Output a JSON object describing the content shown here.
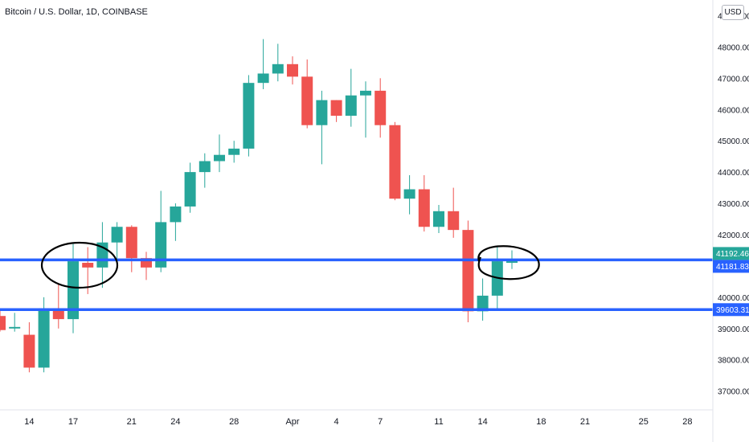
{
  "header": {
    "title": "Bitcoin / U.S. Dollar, 1D, COINBASE",
    "currency": "USD"
  },
  "chart_data": {
    "type": "candlestick",
    "title": "Bitcoin / U.S. Dollar, 1D, COINBASE",
    "ylim": [
      36400,
      49500
    ],
    "y_ticks": [
      37000,
      38000,
      39000,
      40000,
      41000,
      42000,
      43000,
      44000,
      45000,
      46000,
      47000,
      48000,
      49000
    ],
    "y_tick_labels": [
      "37000.00",
      "38000.00",
      "39000.00",
      "40000.00",
      "41000.00",
      "42000.00",
      "43000.00",
      "44000.00",
      "45000.00",
      "46000.00",
      "47000.00",
      "48000.00",
      "49000.00"
    ],
    "x_ticks": [
      {
        "label": "14",
        "index": 2
      },
      {
        "label": "17",
        "index": 5
      },
      {
        "label": "21",
        "index": 9
      },
      {
        "label": "24",
        "index": 12
      },
      {
        "label": "28",
        "index": 16
      },
      {
        "label": "Apr",
        "index": 20
      },
      {
        "label": "4",
        "index": 23
      },
      {
        "label": "7",
        "index": 26
      },
      {
        "label": "11",
        "index": 30
      },
      {
        "label": "14",
        "index": 33
      },
      {
        "label": "18",
        "index": 37
      },
      {
        "label": "21",
        "index": 40
      },
      {
        "label": "25",
        "index": 44
      },
      {
        "label": "28",
        "index": 47
      }
    ],
    "candles": [
      {
        "o": 39400,
        "h": 39600,
        "l": 38900,
        "c": 38950
      },
      {
        "o": 39000,
        "h": 39500,
        "l": 38900,
        "c": 39050
      },
      {
        "o": 38800,
        "h": 39200,
        "l": 37600,
        "c": 37750
      },
      {
        "o": 37750,
        "h": 40000,
        "l": 37600,
        "c": 39650
      },
      {
        "o": 39650,
        "h": 40450,
        "l": 39000,
        "c": 39300
      },
      {
        "o": 39300,
        "h": 41700,
        "l": 38850,
        "c": 41150
      },
      {
        "o": 41100,
        "h": 41600,
        "l": 40100,
        "c": 40950
      },
      {
        "o": 40950,
        "h": 42400,
        "l": 40300,
        "c": 41750
      },
      {
        "o": 41750,
        "h": 42400,
        "l": 41200,
        "c": 42250
      },
      {
        "o": 42250,
        "h": 42300,
        "l": 40800,
        "c": 41250
      },
      {
        "o": 41250,
        "h": 41450,
        "l": 40550,
        "c": 40950
      },
      {
        "o": 40950,
        "h": 43400,
        "l": 40800,
        "c": 42400
      },
      {
        "o": 42400,
        "h": 43000,
        "l": 41800,
        "c": 42900
      },
      {
        "o": 42900,
        "h": 44300,
        "l": 42700,
        "c": 44000
      },
      {
        "o": 44000,
        "h": 44600,
        "l": 43500,
        "c": 44350
      },
      {
        "o": 44350,
        "h": 45200,
        "l": 44000,
        "c": 44550
      },
      {
        "o": 44550,
        "h": 45000,
        "l": 44300,
        "c": 44750
      },
      {
        "o": 44750,
        "h": 47100,
        "l": 44500,
        "c": 46850
      },
      {
        "o": 46850,
        "h": 48250,
        "l": 46650,
        "c": 47150
      },
      {
        "o": 47150,
        "h": 48100,
        "l": 46900,
        "c": 47450
      },
      {
        "o": 47450,
        "h": 47700,
        "l": 46800,
        "c": 47050
      },
      {
        "o": 47050,
        "h": 47600,
        "l": 45400,
        "c": 45500
      },
      {
        "o": 45500,
        "h": 46600,
        "l": 44250,
        "c": 46300
      },
      {
        "o": 46300,
        "h": 46300,
        "l": 45600,
        "c": 45800
      },
      {
        "o": 45800,
        "h": 47300,
        "l": 45450,
        "c": 46450
      },
      {
        "o": 46450,
        "h": 46900,
        "l": 45100,
        "c": 46600
      },
      {
        "o": 46600,
        "h": 47000,
        "l": 45100,
        "c": 45500
      },
      {
        "o": 45500,
        "h": 45600,
        "l": 43100,
        "c": 43150
      },
      {
        "o": 43150,
        "h": 43900,
        "l": 42650,
        "c": 43450
      },
      {
        "o": 43450,
        "h": 43900,
        "l": 42100,
        "c": 42250
      },
      {
        "o": 42250,
        "h": 42950,
        "l": 42050,
        "c": 42750
      },
      {
        "o": 42750,
        "h": 43500,
        "l": 41900,
        "c": 42150
      },
      {
        "o": 42150,
        "h": 42450,
        "l": 39200,
        "c": 39550
      },
      {
        "o": 39550,
        "h": 40600,
        "l": 39250,
        "c": 40050
      },
      {
        "o": 40050,
        "h": 41600,
        "l": 39600,
        "c": 41150
      },
      {
        "o": 41100,
        "h": 41500,
        "l": 40900,
        "c": 41150
      }
    ],
    "horizontal_lines": [
      {
        "price": 41192.46,
        "color": "#2962ff"
      },
      {
        "price": 39603.31,
        "color": "#2962ff"
      }
    ],
    "price_labels": [
      {
        "price": 41192.46,
        "text": "41192.46",
        "color": "#26a69a"
      },
      {
        "price": 41181.83,
        "text": "41181.83",
        "color": "#2962ff"
      },
      {
        "price": 39603.31,
        "text": "39603.31",
        "color": "#2962ff"
      }
    ],
    "colors": {
      "up": "#26a69a",
      "down": "#ef5350",
      "ink": "#000000"
    }
  }
}
